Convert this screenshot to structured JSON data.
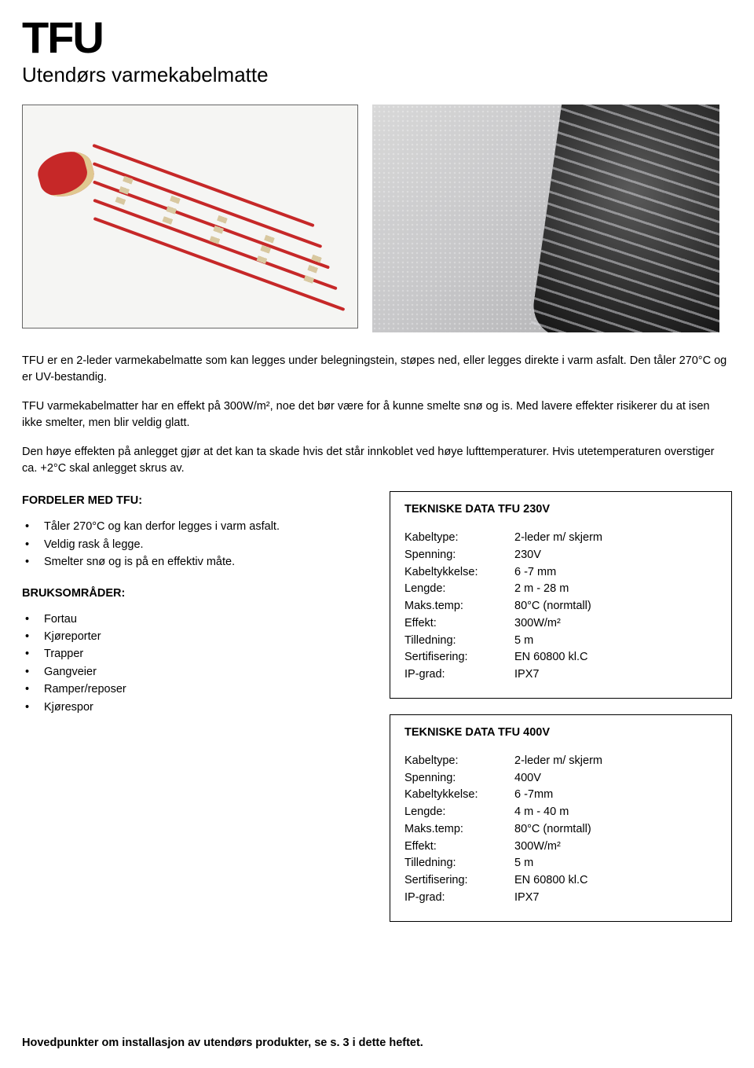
{
  "header": {
    "logo": "TFU",
    "subtitle": "Utendørs varmekabelmatte"
  },
  "paragraphs": {
    "p1": "TFU er en 2-leder varmekabelmatte som kan legges under belegningstein, støpes ned, eller legges direkte i varm asfalt. Den tåler 270°C og er UV-bestandig.",
    "p2": "TFU varmekabelmatter har en effekt på 300W/m², noe det bør være for å kunne smelte snø og is. Med lavere effekter risikerer du at isen ikke smelter, men blir veldig glatt.",
    "p3": "Den høye effekten på anlegget gjør at det kan ta skade hvis det står innkoblet ved høye lufttemperaturer. Hvis utetemperaturen overstiger ca. +2°C skal anlegget skrus av."
  },
  "left": {
    "fordeler_heading": "FORDELER MED TFU:",
    "fordeler": [
      "Tåler 270°C og kan derfor legges i varm asfalt.",
      "Veldig rask å legge.",
      "Smelter snø og is på en effektiv måte."
    ],
    "bruks_heading": "BRUKSOMRÅDER:",
    "bruks": [
      "Fortau",
      "Kjøreporter",
      "Trapper",
      "Gangveier",
      "Ramper/reposer",
      "Kjørespor"
    ]
  },
  "box230": {
    "title": "TEKNISKE DATA TFU 230V",
    "rows": [
      {
        "label": "Kabeltype:",
        "value": "2-leder m/ skjerm"
      },
      {
        "label": "Spenning:",
        "value": "230V"
      },
      {
        "label": "Kabeltykkelse:",
        "value": "6 -7 mm"
      },
      {
        "label": "Lengde:",
        "value": "2 m - 28 m"
      },
      {
        "label": "Maks.temp:",
        "value": "80°C (normtall)"
      },
      {
        "label": "Effekt:",
        "value": "300W/m²"
      },
      {
        "label": "Tilledning:",
        "value": "5 m"
      },
      {
        "label": "Sertifisering:",
        "value": "EN 60800 kl.C"
      },
      {
        "label": "IP-grad:",
        "value": "IPX7"
      }
    ]
  },
  "box400": {
    "title": "TEKNISKE DATA TFU 400V",
    "rows": [
      {
        "label": "Kabeltype:",
        "value": "2-leder m/ skjerm"
      },
      {
        "label": "Spenning:",
        "value": "400V"
      },
      {
        "label": "Kabeltykkelse:",
        "value": "6 -7mm"
      },
      {
        "label": "Lengde:",
        "value": "4 m - 40 m"
      },
      {
        "label": "Maks.temp:",
        "value": "80°C (normtall)"
      },
      {
        "label": "Effekt:",
        "value": "300W/m²"
      },
      {
        "label": "Tilledning:",
        "value": "5 m"
      },
      {
        "label": "Sertifisering:",
        "value": "EN 60800 kl.C"
      },
      {
        "label": "IP-grad:",
        "value": "IPX7"
      }
    ]
  },
  "footer": "Hovedpunkter om installasjon av utendørs produkter, se s. 3 i dette heftet.",
  "colors": {
    "text": "#000000",
    "background": "#ffffff",
    "cable_red": "#c62828",
    "mesh_tan": "#d8c8a0",
    "border": "#000000"
  }
}
